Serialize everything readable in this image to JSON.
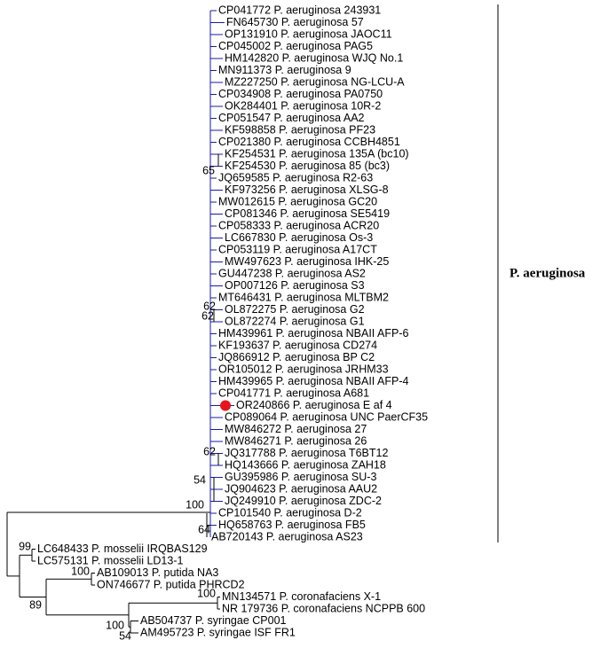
{
  "leaves": [
    "CP041772 P. aeruginosa 243931",
    "FN645730 P. aeruginosa 57",
    "OP131910 P. aeruginosa JAOC11",
    "CP045002 P. aeruginosa PAG5",
    "HM142820 P. aeruginosa WJQ No.1",
    "MN911373 P. aeruginosa 9",
    "MZ227250 P. aeruginosa NG-LCU-A",
    "CP034908 P. aeruginosa PA0750",
    "OK284401 P. aeruginosa 10R-2",
    "CP051547 P. aeruginosa AA2",
    "KF598858 P. aeruginosa PF23",
    "CP021380 P. aeruginosa CCBH4851",
    "KF254531 P. aeruginosa 135A (bc10)",
    "KF254530 P. aeruginosa 85 (bc3)",
    "JQ659585 P. aeruginosa R2-63",
    "KF973256 P. aeruginosa XLSG-8",
    "MW012615 P. aeruginosa GC20",
    "CP081346 P. aeruginosa SE5419",
    "CP058333 P. aeruginosa ACR20",
    "LC667830 P. aeruginosa Os-3",
    "CP053119 P. aeruginosa A17CT",
    "MW497623 P. aeruginosa IHK-25",
    "GU447238 P. aeruginosa AS2",
    "OP007126 P. aeruginosa S3",
    "MT646431 P. aeruginosa MLTBM2",
    "OL872275 P. aeruginosa G2",
    "OL872274 P. aeruginosa G1",
    "HM439961 P. aeruginosa NBAII AFP-6",
    "KF193637 P. aeruginosa CD274",
    "JQ866912 P. aeruginosa BP C2",
    "OR105012 P. aeruginosa JRHM33",
    "HM439965 P. aeruginosa NBAII AFP-4",
    "CP041771 P. aeruginosa A681",
    "OR240866 P. aeruginosa E af 4",
    "CP089064 P. aeruginosa UNC PaerCF35",
    "MW846272 P. aeruginosa 27",
    "MW846271 P. aeruginosa 26",
    "JQ317788 P. aeruginosa T6BT12",
    "HQ143666 P. aeruginosa ZAH18",
    "GU395986 P. aeruginosa SU-3",
    "JQ904623 P. aeruginosa AAU2",
    "JQ249910 P. aeruginosa ZDC-2",
    "CP101540 P. aeruginosa D-2",
    "HQ658763 P. aeruginosa FB5",
    "AB720143 P. aeruginosa AS23",
    "LC648433 P. mosselii IRQBAS129",
    "LC575131 P. mosselii LD13-1",
    "AB109013 P. putida NA3",
    "ON746677 P. putida PHRCD2",
    "MN134571 P. coronafaciens X-1",
    "NR 179736 P. coronafaciens NCPPB 600",
    "AB504737 P. syringae CP001",
    "AM495723 P. syringae ISF FR1"
  ],
  "bootstrap": [
    65,
    62,
    62,
    62,
    54,
    100,
    64,
    99,
    100,
    89,
    100,
    100,
    54
  ],
  "clade_label": "P. aeruginosa"
}
